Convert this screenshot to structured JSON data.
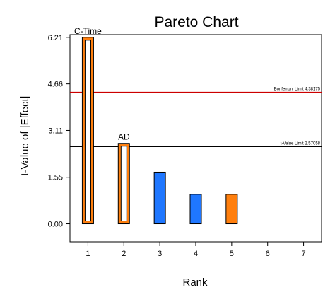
{
  "chart_data": {
    "type": "bar",
    "title": "Pareto Chart",
    "xlabel": "Rank",
    "ylabel": "t-Value of |Effect|",
    "x_ticks": [
      "1",
      "2",
      "3",
      "4",
      "5",
      "6",
      "7"
    ],
    "y_ticks": [
      "0.00",
      "1.55",
      "3.11",
      "4.66",
      "6.21"
    ],
    "xlim": [
      0.5,
      7.5
    ],
    "ylim": [
      -0.6,
      6.3
    ],
    "grid": false,
    "bars": [
      {
        "rank": 1,
        "value": 6.21,
        "label": "C-Time",
        "style": "outline",
        "color": "#ff7f0e"
      },
      {
        "rank": 2,
        "value": 2.68,
        "label": "AD",
        "style": "outline",
        "color": "#ff7f0e"
      },
      {
        "rank": 3,
        "value": 1.72,
        "label": "",
        "style": "filled",
        "color": "#1f77ff"
      },
      {
        "rank": 4,
        "value": 0.98,
        "label": "",
        "style": "filled",
        "color": "#1f77ff"
      },
      {
        "rank": 5,
        "value": 0.98,
        "label": "",
        "style": "filled",
        "color": "#ff7f0e"
      }
    ],
    "reference_lines": [
      {
        "label": "Bonferroni Limit 4.38175",
        "value": 4.38175,
        "color": "#cc0000"
      },
      {
        "label": "t-Value Limit 2.57058",
        "value": 2.57058,
        "color": "#000000"
      }
    ]
  }
}
